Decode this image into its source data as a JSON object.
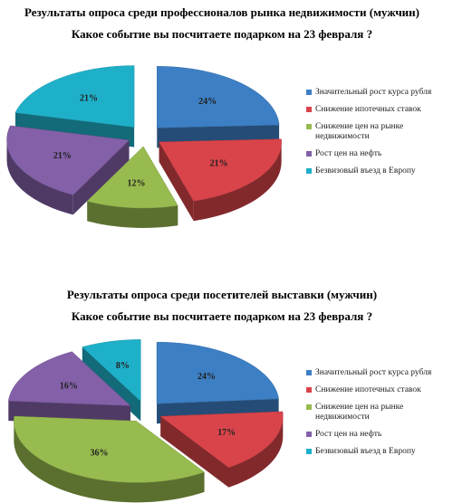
{
  "chart_data": [
    {
      "type": "pie",
      "title": "Результаты опроса среди профессионалов рынка недвижимости (мужчин)",
      "subtitle": "Какое событие вы посчитаете подарком на 23 февраля ?",
      "categories": [
        "Значительный рост курса рубля",
        "Снижение ипотечных ставок",
        "Снижение цен на рынке недвижимости",
        "Рост цен на нефть",
        "Безвизовый въезд в Европу"
      ],
      "values": [
        24,
        21,
        12,
        21,
        21
      ],
      "value_labels": [
        "24%",
        "21%",
        "12%",
        "21%",
        "21%"
      ],
      "colors": [
        "#3d7fc4",
        "#d8444a",
        "#98bb4f",
        "#8360a8",
        "#1fb0c9"
      ]
    },
    {
      "type": "pie",
      "title": "Результаты опроса среди посетителей выставки (мужчин)",
      "subtitle": "Какое событие вы посчитаете подарком на 23 февраля ?",
      "categories": [
        "Значительный рост курса рубля",
        "Снижение ипотечных ставок",
        "Снижение цен на рынке недвижимости",
        "Рост цен на нефть",
        "Безвизовый въезд в Европу"
      ],
      "values": [
        24,
        17,
        36,
        16,
        8
      ],
      "value_labels": [
        "24%",
        "17%",
        "36%",
        "16%",
        "8%"
      ],
      "colors": [
        "#3d7fc4",
        "#d8444a",
        "#98bb4f",
        "#8360a8",
        "#1fb0c9"
      ]
    }
  ]
}
